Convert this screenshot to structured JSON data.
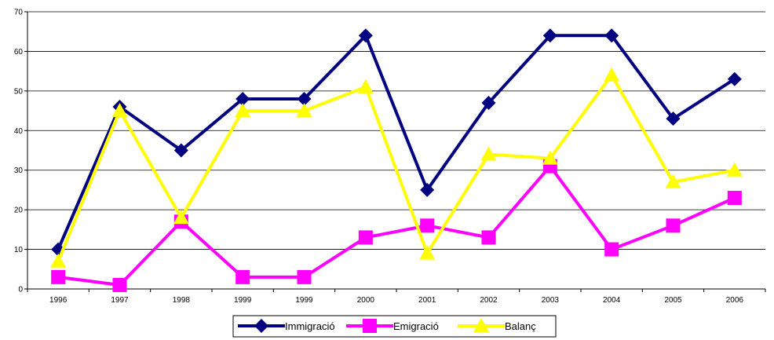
{
  "chart_data": {
    "type": "line",
    "categories": [
      "1996",
      "1997",
      "1998",
      "1999",
      "1999",
      "2000",
      "2001",
      "2002",
      "2003",
      "2004",
      "2005",
      "2006"
    ],
    "ylim": [
      0,
      70
    ],
    "yticks": [
      "0",
      "10",
      "20",
      "30",
      "40",
      "50",
      "60",
      "70"
    ],
    "grid": true,
    "legend_position": "bottom",
    "series": [
      {
        "name": "Immigració",
        "color": "#000080",
        "marker": "diamond",
        "values": [
          10,
          46,
          35,
          48,
          48,
          64,
          25,
          47,
          64,
          64,
          43,
          53
        ]
      },
      {
        "name": "Emigració",
        "color": "#ff00ff",
        "marker": "square",
        "values": [
          3,
          1,
          17,
          3,
          3,
          13,
          16,
          13,
          31,
          10,
          16,
          23
        ]
      },
      {
        "name": "Balanç",
        "color": "#ffff00",
        "marker": "triangle",
        "values": [
          7,
          45,
          18,
          45,
          45,
          51,
          9,
          34,
          33,
          54,
          27,
          30
        ]
      }
    ]
  }
}
